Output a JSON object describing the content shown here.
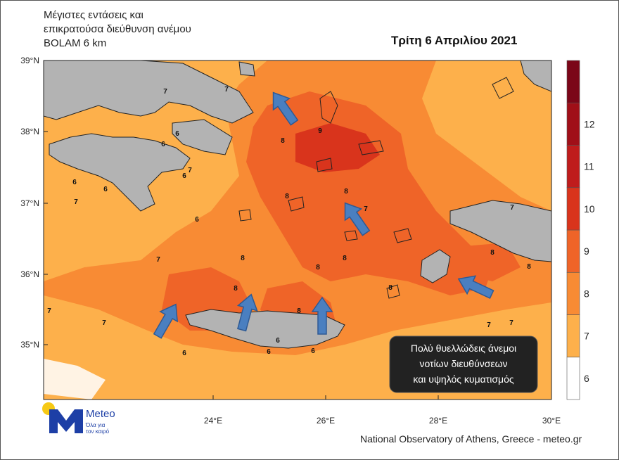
{
  "title_lines": [
    "Μέγιστες εντάσεις και",
    "επικρατούσα διεύθυνση ανέμου",
    "BOLAM 6 km"
  ],
  "date": "Τρίτη 6 Απριλίου 2021",
  "lat_labels": [
    "39°N",
    "38°N",
    "37°N",
    "36°N",
    "35°N"
  ],
  "lon_labels": [
    "24°E",
    "26°E",
    "28°E",
    "30°E"
  ],
  "colorbar": {
    "levels": [
      "6",
      "7",
      "8",
      "9",
      "10",
      "11",
      "12"
    ],
    "colors": [
      "#ffffff",
      "#fdb04b",
      "#f88b34",
      "#ef6428",
      "#d9341c",
      "#bf1c1c",
      "#a00f18",
      "#7b0618"
    ]
  },
  "callout": [
    "Πολύ θυελλώδεις άνεμοι",
    "νοτίων διευθύνσεων",
    "και υψηλός κυματισμός"
  ],
  "contour_labels": [
    "6",
    "6",
    "6",
    "6",
    "6",
    "6",
    "6",
    "6",
    "6",
    "6",
    "7",
    "7",
    "7",
    "7",
    "7",
    "7",
    "7",
    "7",
    "7",
    "7",
    "7",
    "8",
    "8",
    "8",
    "8",
    "8",
    "8",
    "8",
    "8",
    "8",
    "8",
    "8",
    "9"
  ],
  "logo": {
    "brand": "Meteo",
    "tagline": [
      "Όλα για",
      "τον καιρό"
    ]
  },
  "credit": "National Observatory of Athens, Greece - meteo.gr"
}
